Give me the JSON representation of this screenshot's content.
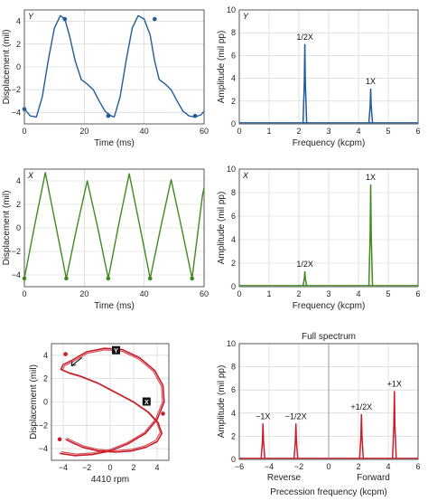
{
  "colors": {
    "y_probe": "#1f5c99",
    "x_probe": "#3f8a1f",
    "orbit": "#c81e2a",
    "axes": "#333333",
    "grid": "#cfcfcf"
  },
  "chart_data": [
    {
      "id": "y-time",
      "type": "line",
      "panel_label": "Y",
      "xlabel": "Time (ms)",
      "ylabel": "Displacement (mil)",
      "xlim": [
        0,
        60
      ],
      "ylim": [
        -5,
        5
      ],
      "xticks": [
        0,
        20,
        40,
        60
      ],
      "yticks": [
        -4,
        -2,
        0,
        2,
        4
      ],
      "grid": true,
      "color": "y_probe",
      "series": [
        {
          "x": [
            0,
            2,
            4,
            6,
            8,
            10,
            12,
            13.5,
            15,
            17,
            19,
            21,
            23,
            25,
            27,
            29,
            30,
            32,
            34,
            36,
            38,
            40,
            42,
            43.5,
            45,
            47,
            49,
            51,
            53,
            55,
            57,
            59,
            60
          ],
          "y": [
            -3.7,
            -4.3,
            -4.4,
            -2.6,
            0.6,
            3.4,
            4.5,
            4.2,
            2.8,
            0.5,
            -1.1,
            -1.5,
            -2.0,
            -3.0,
            -3.9,
            -4.3,
            -4.4,
            -2.6,
            0.6,
            3.4,
            4.5,
            4.2,
            2.8,
            0.5,
            -1.1,
            -1.5,
            -2.0,
            -3.0,
            -3.9,
            -4.3,
            -4.4,
            -4.2,
            -3.9
          ]
        }
      ],
      "markers": {
        "x": [
          0,
          13.5,
          28,
          43.5,
          57
        ],
        "y": [
          -3.7,
          4.2,
          -4.3,
          4.2,
          -4.3
        ]
      }
    },
    {
      "id": "y-spectrum",
      "type": "line",
      "panel_label": "Y",
      "xlabel": "Frequency (kcpm)",
      "ylabel": "Amplitude (mil pp)",
      "xlim": [
        0,
        6
      ],
      "ylim": [
        0,
        10
      ],
      "xticks": [
        0,
        1,
        2,
        3,
        4,
        5,
        6
      ],
      "yticks": [
        0,
        2,
        4,
        6,
        8,
        10
      ],
      "grid": true,
      "color": "y_probe",
      "peaks": [
        {
          "x": 2.2,
          "y": 7.0,
          "label": "1/2X"
        },
        {
          "x": 4.41,
          "y": 3.1,
          "label": "1X"
        }
      ]
    },
    {
      "id": "x-time",
      "type": "line",
      "panel_label": "X",
      "xlabel": "Time (ms)",
      "ylabel": "Displacement (mil)",
      "xlim": [
        0,
        60
      ],
      "ylim": [
        -5,
        5
      ],
      "xticks": [
        0,
        20,
        40,
        60
      ],
      "yticks": [
        -4,
        -2,
        0,
        2,
        4
      ],
      "grid": true,
      "color": "x_probe",
      "series": [
        {
          "x": [
            0,
            3.5,
            7,
            10.5,
            14,
            17.5,
            21,
            24.5,
            28,
            31.5,
            35,
            38.5,
            42,
            45.5,
            49,
            52.5,
            56,
            59.5,
            60
          ],
          "y": [
            -4.3,
            0.3,
            4.7,
            0.2,
            -4.3,
            0.0,
            4.0,
            0.0,
            -4.3,
            0.3,
            4.6,
            0.2,
            -4.3,
            0.0,
            4.1,
            0.0,
            -4.3,
            2.8,
            3.4
          ]
        }
      ],
      "markers": {
        "x": [
          0,
          14,
          28,
          42,
          56
        ],
        "y": [
          -4.3,
          -4.3,
          -4.3,
          -4.3,
          -4.3
        ]
      }
    },
    {
      "id": "x-spectrum",
      "type": "line",
      "panel_label": "X",
      "xlabel": "Frequency (kcpm)",
      "ylabel": "Amplitude (mil pp)",
      "xlim": [
        0,
        6
      ],
      "ylim": [
        0,
        10
      ],
      "xticks": [
        0,
        1,
        2,
        3,
        4,
        5,
        6
      ],
      "yticks": [
        0,
        2,
        4,
        6,
        8,
        10
      ],
      "grid": true,
      "color": "x_probe",
      "peaks": [
        {
          "x": 2.2,
          "y": 1.3,
          "label": "1/2X"
        },
        {
          "x": 4.41,
          "y": 8.7,
          "label": "1X"
        }
      ]
    },
    {
      "id": "orbit",
      "type": "line",
      "xlabel": "4410 rpm",
      "ylabel": "Displacement (mil)",
      "xlim": [
        -5,
        5
      ],
      "ylim": [
        -5,
        5
      ],
      "xticks": [
        -4,
        -2,
        0,
        2,
        4
      ],
      "yticks": [
        -4,
        -2,
        0,
        2,
        4
      ],
      "grid": true,
      "color": "orbit",
      "probe_labels": [
        {
          "label": "Y",
          "x": 0,
          "y": 5
        },
        {
          "label": "X",
          "x": 5,
          "y": 0
        }
      ],
      "series": [
        {
          "x": [
            -4.3,
            -3.0,
            -1.5,
            0.0,
            1.5,
            3.0,
            4.0,
            4.6,
            4.5,
            3.8,
            2.5,
            1.0,
            -0.5,
            -2.0,
            -3.2,
            -4.0,
            -4.2,
            -3.5,
            -2.5,
            -1.0,
            0.5,
            2.0,
            3.3,
            4.1,
            4.4,
            4.0,
            3.0,
            1.8,
            0.5,
            -1.0,
            -2.3,
            -3.2,
            -3.8
          ],
          "y": [
            -4.4,
            -4.6,
            -4.5,
            -4.2,
            -3.6,
            -2.7,
            -1.5,
            0.0,
            1.4,
            2.7,
            3.8,
            4.5,
            4.6,
            4.3,
            3.6,
            3.2,
            2.8,
            2.5,
            2.2,
            1.6,
            0.8,
            0.0,
            -0.9,
            -1.8,
            -2.7,
            -3.4,
            -3.9,
            -4.2,
            -4.3,
            -4.2,
            -3.9,
            -3.5,
            -3.2
          ]
        }
      ],
      "markers": {
        "x": [
          -3.8,
          -4.3,
          4.5
        ],
        "y": [
          4.1,
          -3.2,
          -1.0
        ]
      }
    },
    {
      "id": "full-spectrum",
      "type": "line",
      "title": "Full spectrum",
      "xlabel": "Precession frequency (kcpm)",
      "ylabel": "Amplitude (mil pp)",
      "xlim": [
        -6,
        6
      ],
      "ylim": [
        0,
        10
      ],
      "xticks": [
        -6,
        -4,
        -2,
        0,
        2,
        4,
        6
      ],
      "yticks": [
        0,
        2,
        4,
        6,
        8,
        10
      ],
      "grid": true,
      "color": "orbit",
      "region_labels": [
        {
          "label": "Reverse",
          "x": -3
        },
        {
          "label": "Forward",
          "x": 3
        }
      ],
      "peaks": [
        {
          "x": -4.41,
          "y": 3.1,
          "label": "−1X"
        },
        {
          "x": -2.2,
          "y": 3.1,
          "label": "−1/2X"
        },
        {
          "x": 2.2,
          "y": 3.9,
          "label": "+1/2X"
        },
        {
          "x": 4.41,
          "y": 5.9,
          "label": "+1X"
        }
      ]
    }
  ]
}
